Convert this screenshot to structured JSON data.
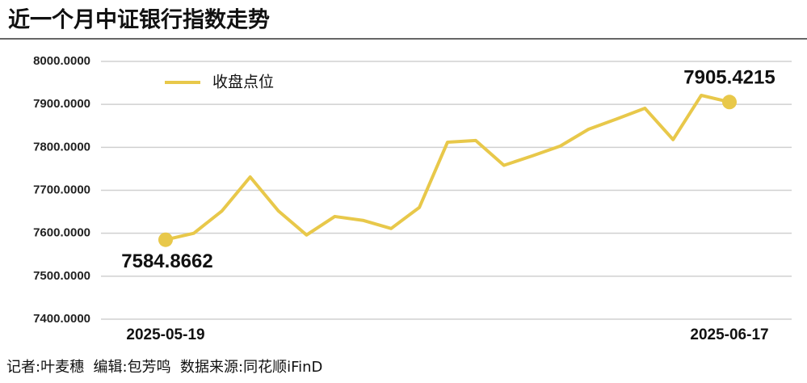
{
  "chart_data": {
    "type": "line",
    "title": "近一个月中证银行指数走势",
    "categories": [
      "2025-05-19",
      null,
      null,
      null,
      null,
      null,
      null,
      null,
      null,
      null,
      null,
      null,
      null,
      null,
      null,
      null,
      null,
      null,
      null,
      null,
      "2025-06-17"
    ],
    "series": [
      {
        "name": "收盘点位",
        "color": "#e8c84a",
        "values": [
          7584.8662,
          7600,
          7652,
          7731,
          7652,
          7596,
          7639,
          7630,
          7611,
          7660,
          7812,
          7816,
          7758,
          7780,
          7803,
          7842,
          7866,
          7891,
          7818,
          7921,
          7905.4215
        ],
        "value_labels": [
          "7584.8662",
          null,
          null,
          null,
          null,
          null,
          null,
          null,
          null,
          null,
          null,
          null,
          null,
          null,
          null,
          null,
          null,
          null,
          null,
          null,
          "7905.4215"
        ]
      }
    ],
    "ylim": [
      7400,
      8000
    ],
    "yticks": [
      {
        "value": 7400,
        "label": "7400.0000"
      },
      {
        "value": 7500,
        "label": "7500.0000"
      },
      {
        "value": 7600,
        "label": "7600.0000"
      },
      {
        "value": 7700,
        "label": "7700.0000"
      },
      {
        "value": 7800,
        "label": "7800.0000"
      },
      {
        "value": 7900,
        "label": "7900.0000"
      },
      {
        "value": 8000,
        "label": "8000.0000"
      }
    ],
    "grid": true,
    "footer": "记者:叶麦穗  编辑:包芳鸣  数据来源:同花顺iFinD"
  }
}
